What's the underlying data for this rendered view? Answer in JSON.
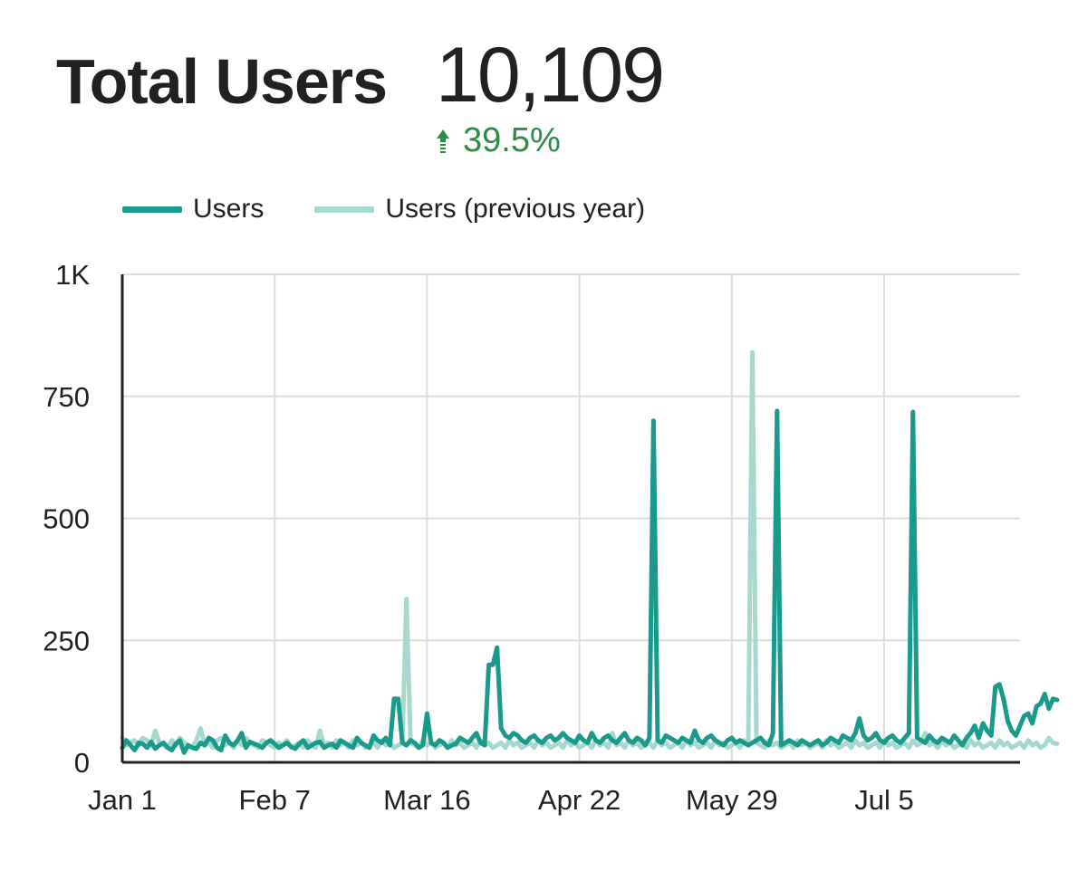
{
  "header": {
    "title": "Total Users",
    "metric": "10,109",
    "delta": "39.5%"
  },
  "colors": {
    "users": "#1a9a8a",
    "users_prev": "#a6d8cf",
    "grid": "#dddddd",
    "axis": "#212121",
    "delta": "#2e8b45"
  },
  "chart_data": {
    "type": "line",
    "title": "Total Users",
    "xlabel": "",
    "ylabel": "",
    "ylim": [
      0,
      1000
    ],
    "yticks": [
      0,
      250,
      500,
      750,
      1000
    ],
    "ytick_labels": [
      "0",
      "250",
      "500",
      "750",
      "1K"
    ],
    "xticks": [
      0,
      37,
      74,
      111,
      148,
      185
    ],
    "xtick_labels": [
      "Jan 1",
      "Feb 7",
      "Mar 16",
      "Apr 22",
      "May 29",
      "Jul 5"
    ],
    "x_range": [
      0,
      218
    ],
    "grid": true,
    "legend": "top-left",
    "series": [
      {
        "name": "Users",
        "color": "#1a9a8a",
        "values": [
          30,
          45,
          35,
          25,
          40,
          38,
          30,
          42,
          28,
          35,
          40,
          30,
          25,
          38,
          45,
          20,
          35,
          30,
          28,
          40,
          35,
          50,
          45,
          30,
          25,
          55,
          40,
          35,
          45,
          60,
          30,
          42,
          38,
          35,
          30,
          40,
          45,
          38,
          30,
          35,
          40,
          32,
          28,
          38,
          45,
          30,
          35,
          40,
          42,
          30,
          35,
          38,
          30,
          45,
          40,
          35,
          30,
          50,
          40,
          35,
          30,
          55,
          45,
          40,
          50,
          35,
          130,
          130,
          40,
          35,
          45,
          40,
          30,
          35,
          100,
          40,
          35,
          45,
          40,
          30,
          35,
          38,
          50,
          45,
          40,
          50,
          60,
          40,
          35,
          200,
          200,
          235,
          70,
          55,
          50,
          60,
          55,
          45,
          40,
          50,
          55,
          45,
          40,
          50,
          55,
          45,
          50,
          60,
          50,
          45,
          40,
          55,
          45,
          40,
          60,
          45,
          40,
          50,
          55,
          45,
          40,
          50,
          60,
          45,
          40,
          50,
          45,
          35,
          50,
          700,
          45,
          40,
          55,
          50,
          45,
          40,
          50,
          45,
          40,
          65,
          45,
          40,
          50,
          55,
          45,
          40,
          35,
          45,
          50,
          40,
          45,
          40,
          35,
          40,
          45,
          50,
          40,
          35,
          60,
          720,
          35,
          40,
          45,
          40,
          35,
          45,
          40,
          35,
          40,
          45,
          35,
          40,
          50,
          45,
          40,
          55,
          50,
          45,
          60,
          90,
          55,
          45,
          50,
          60,
          45,
          40,
          50,
          55,
          45,
          40,
          50,
          60,
          718,
          50,
          45,
          40,
          55,
          45,
          40,
          50,
          45,
          40,
          55,
          45,
          35,
          50,
          60,
          75,
          50,
          80,
          65,
          55,
          155,
          160,
          130,
          85,
          65,
          55,
          75,
          95,
          100,
          80,
          115,
          120,
          140,
          110,
          130,
          128
        ]
      },
      {
        "name": "Users (previous year)",
        "color": "#a6d8cf",
        "values": [
          50,
          35,
          40,
          45,
          35,
          50,
          45,
          35,
          65,
          40,
          35,
          30,
          45,
          35,
          50,
          40,
          35,
          30,
          45,
          70,
          35,
          40,
          30,
          45,
          50,
          35,
          40,
          30,
          45,
          35,
          50,
          40,
          35,
          30,
          45,
          40,
          35,
          30,
          40,
          35,
          45,
          30,
          35,
          40,
          30,
          45,
          35,
          30,
          65,
          35,
          40,
          30,
          45,
          35,
          40,
          30,
          45,
          35,
          40,
          30,
          35,
          40,
          30,
          45,
          35,
          40,
          30,
          35,
          40,
          335,
          40,
          35,
          30,
          45,
          35,
          40,
          30,
          35,
          40,
          30,
          45,
          35,
          40,
          30,
          35,
          40,
          30,
          45,
          35,
          40,
          30,
          35,
          40,
          30,
          45,
          35,
          40,
          30,
          35,
          40,
          30,
          45,
          35,
          40,
          30,
          35,
          40,
          30,
          45,
          35,
          40,
          30,
          35,
          40,
          30,
          45,
          35,
          40,
          30,
          60,
          35,
          40,
          30,
          45,
          35,
          40,
          30,
          35,
          40,
          30,
          45,
          35,
          40,
          30,
          35,
          40,
          30,
          45,
          35,
          40,
          30,
          35,
          40,
          30,
          45,
          35,
          40,
          30,
          35,
          40,
          30,
          45,
          35,
          840,
          40,
          35,
          30,
          45,
          35,
          40,
          30,
          35,
          40,
          30,
          45,
          35,
          40,
          30,
          35,
          40,
          30,
          45,
          35,
          40,
          30,
          35,
          40,
          30,
          45,
          35,
          40,
          30,
          35,
          40,
          30,
          45,
          35,
          40,
          30,
          35,
          40,
          30,
          45,
          35,
          40,
          60,
          35,
          40,
          30,
          45,
          35,
          40,
          30,
          35,
          40,
          30,
          45,
          35,
          40,
          30,
          35,
          40,
          30,
          45,
          35,
          40,
          30,
          35,
          40,
          30,
          45,
          35,
          40,
          30,
          35,
          50,
          40,
          38
        ]
      }
    ]
  }
}
